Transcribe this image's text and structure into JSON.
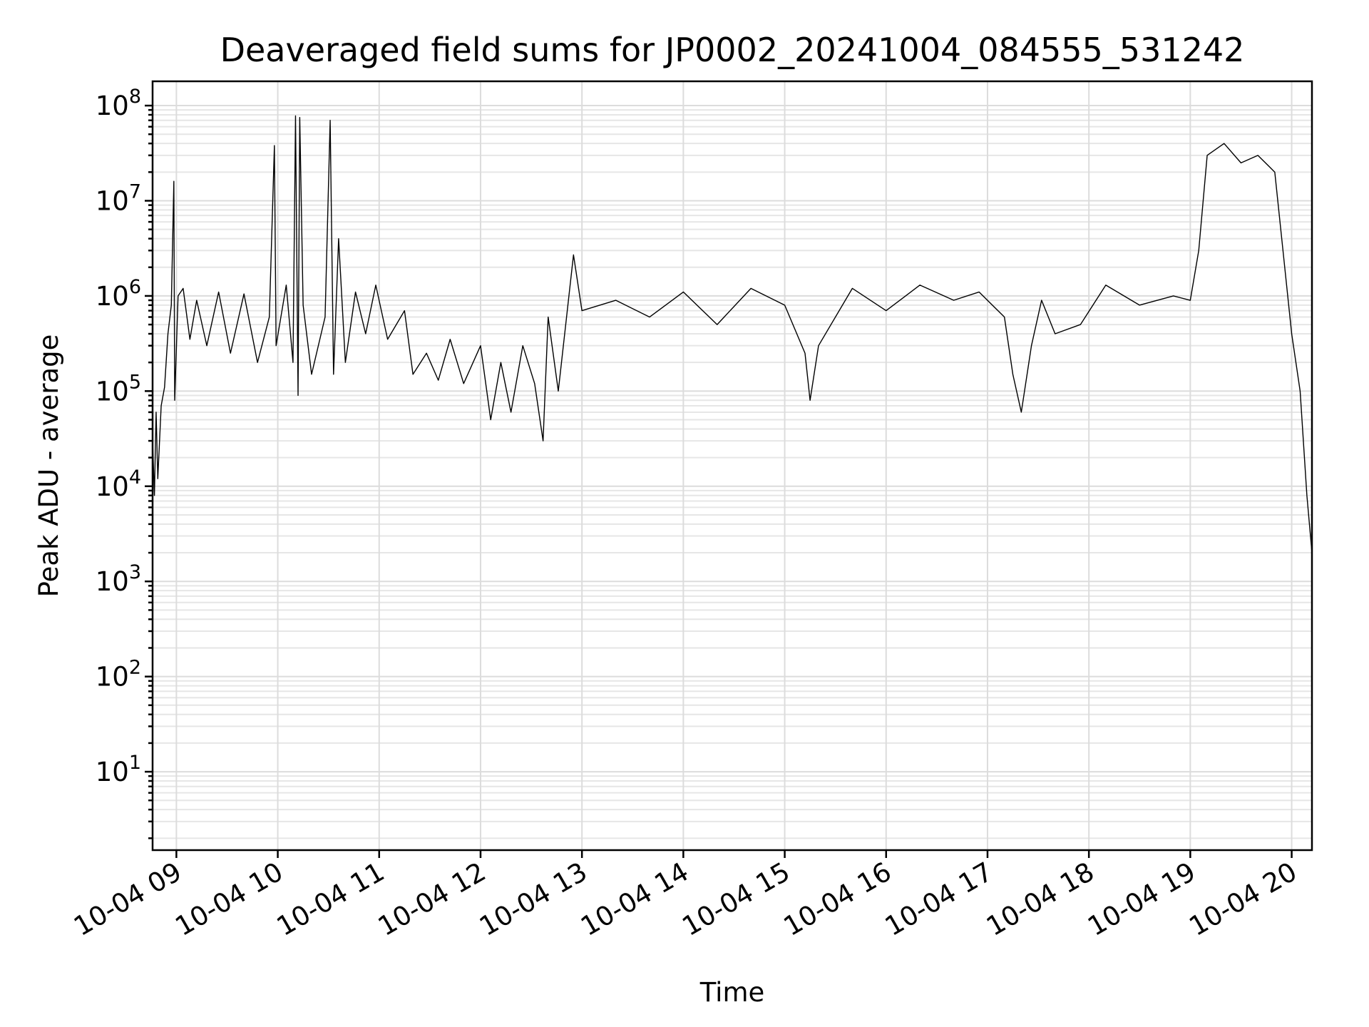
{
  "chart_data": {
    "type": "line",
    "title": "Deaveraged field sums for JP0002_20241004_084555_531242",
    "xlabel": "Time",
    "ylabel": "Peak ADU - average",
    "yscale": "log",
    "ylim": [
      1.5,
      180000000
    ],
    "xlim": [
      "2024-10-04 08:45:55",
      "2024-10-04 20:12:00"
    ],
    "grid": true,
    "x_ticks": [
      {
        "value": "2024-10-04 09:00",
        "label": "10-04 09"
      },
      {
        "value": "2024-10-04 10:00",
        "label": "10-04 10"
      },
      {
        "value": "2024-10-04 11:00",
        "label": "10-04 11"
      },
      {
        "value": "2024-10-04 12:00",
        "label": "10-04 12"
      },
      {
        "value": "2024-10-04 13:00",
        "label": "10-04 13"
      },
      {
        "value": "2024-10-04 14:00",
        "label": "10-04 14"
      },
      {
        "value": "2024-10-04 15:00",
        "label": "10-04 15"
      },
      {
        "value": "2024-10-04 16:00",
        "label": "10-04 16"
      },
      {
        "value": "2024-10-04 17:00",
        "label": "10-04 17"
      },
      {
        "value": "2024-10-04 18:00",
        "label": "10-04 18"
      },
      {
        "value": "2024-10-04 19:00",
        "label": "10-04 19"
      },
      {
        "value": "2024-10-04 20:00",
        "label": "10-04 20"
      }
    ],
    "y_ticks": [
      {
        "value": 10,
        "base": "10",
        "exp": "1"
      },
      {
        "value": 100,
        "base": "10",
        "exp": "2"
      },
      {
        "value": 1000,
        "base": "10",
        "exp": "3"
      },
      {
        "value": 10000,
        "base": "10",
        "exp": "4"
      },
      {
        "value": 100000,
        "base": "10",
        "exp": "5"
      },
      {
        "value": 1000000,
        "base": "10",
        "exp": "6"
      },
      {
        "value": 10000000,
        "base": "10",
        "exp": "7"
      },
      {
        "value": 100000000,
        "base": "10",
        "exp": "8"
      }
    ],
    "series": [
      {
        "color": "#000000",
        "points": [
          [
            "2024-10-04 08:45:55",
            30000
          ],
          [
            "2024-10-04 08:47:00",
            8000
          ],
          [
            "2024-10-04 08:48:00",
            60000
          ],
          [
            "2024-10-04 08:49:00",
            12000
          ],
          [
            "2024-10-04 08:51:00",
            70000
          ],
          [
            "2024-10-04 08:53:00",
            110000
          ],
          [
            "2024-10-04 08:55:00",
            400000
          ],
          [
            "2024-10-04 08:57:00",
            800000
          ],
          [
            "2024-10-04 08:58:30",
            16000000
          ],
          [
            "2024-10-04 08:59:00",
            80000
          ],
          [
            "2024-10-04 09:01:00",
            1000000
          ],
          [
            "2024-10-04 09:04:00",
            1200000
          ],
          [
            "2024-10-04 09:08:00",
            350000
          ],
          [
            "2024-10-04 09:12:00",
            900000
          ],
          [
            "2024-10-04 09:18:00",
            300000
          ],
          [
            "2024-10-04 09:25:00",
            1100000
          ],
          [
            "2024-10-04 09:32:00",
            250000
          ],
          [
            "2024-10-04 09:40:00",
            1050000
          ],
          [
            "2024-10-04 09:48:00",
            200000
          ],
          [
            "2024-10-04 09:55:00",
            600000
          ],
          [
            "2024-10-04 09:58:00",
            38000000
          ],
          [
            "2024-10-04 09:59:00",
            300000
          ],
          [
            "2024-10-04 10:05:00",
            1300000
          ],
          [
            "2024-10-04 10:09:00",
            200000
          ],
          [
            "2024-10-04 10:10:30",
            78000000
          ],
          [
            "2024-10-04 10:12:00",
            90000
          ],
          [
            "2024-10-04 10:13:00",
            75000000
          ],
          [
            "2024-10-04 10:15:00",
            800000
          ],
          [
            "2024-10-04 10:20:00",
            150000
          ],
          [
            "2024-10-04 10:28:00",
            600000
          ],
          [
            "2024-10-04 10:31:00",
            70000000
          ],
          [
            "2024-10-04 10:33:00",
            150000
          ],
          [
            "2024-10-04 10:36:00",
            4000000
          ],
          [
            "2024-10-04 10:40:00",
            200000
          ],
          [
            "2024-10-04 10:46:00",
            1100000
          ],
          [
            "2024-10-04 10:52:00",
            400000
          ],
          [
            "2024-10-04 10:58:00",
            1300000
          ],
          [
            "2024-10-04 11:05:00",
            350000
          ],
          [
            "2024-10-04 11:15:00",
            700000
          ],
          [
            "2024-10-04 11:20:00",
            150000
          ],
          [
            "2024-10-04 11:28:00",
            250000
          ],
          [
            "2024-10-04 11:35:00",
            130000
          ],
          [
            "2024-10-04 11:42:00",
            350000
          ],
          [
            "2024-10-04 11:50:00",
            120000
          ],
          [
            "2024-10-04 12:00:00",
            300000
          ],
          [
            "2024-10-04 12:06:00",
            50000
          ],
          [
            "2024-10-04 12:12:00",
            200000
          ],
          [
            "2024-10-04 12:18:00",
            60000
          ],
          [
            "2024-10-04 12:25:00",
            300000
          ],
          [
            "2024-10-04 12:32:00",
            120000
          ],
          [
            "2024-10-04 12:37:00",
            30000
          ],
          [
            "2024-10-04 12:40:00",
            600000
          ],
          [
            "2024-10-04 12:46:00",
            100000
          ],
          [
            "2024-10-04 12:52:00",
            900000
          ],
          [
            "2024-10-04 12:55:00",
            2700000
          ],
          [
            "2024-10-04 13:00:00",
            700000
          ],
          [
            "2024-10-04 13:20:00",
            900000
          ],
          [
            "2024-10-04 13:40:00",
            600000
          ],
          [
            "2024-10-04 14:00:00",
            1100000
          ],
          [
            "2024-10-04 14:20:00",
            500000
          ],
          [
            "2024-10-04 14:40:00",
            1200000
          ],
          [
            "2024-10-04 15:00:00",
            800000
          ],
          [
            "2024-10-04 15:12:00",
            250000
          ],
          [
            "2024-10-04 15:15:00",
            80000
          ],
          [
            "2024-10-04 15:20:00",
            300000
          ],
          [
            "2024-10-04 15:40:00",
            1200000
          ],
          [
            "2024-10-04 16:00:00",
            700000
          ],
          [
            "2024-10-04 16:20:00",
            1300000
          ],
          [
            "2024-10-04 16:40:00",
            900000
          ],
          [
            "2024-10-04 16:55:00",
            1100000
          ],
          [
            "2024-10-04 17:10:00",
            600000
          ],
          [
            "2024-10-04 17:15:00",
            150000
          ],
          [
            "2024-10-04 17:20:00",
            60000
          ],
          [
            "2024-10-04 17:26:00",
            300000
          ],
          [
            "2024-10-04 17:32:00",
            900000
          ],
          [
            "2024-10-04 17:40:00",
            400000
          ],
          [
            "2024-10-04 17:55:00",
            500000
          ],
          [
            "2024-10-04 18:10:00",
            1300000
          ],
          [
            "2024-10-04 18:30:00",
            800000
          ],
          [
            "2024-10-04 18:50:00",
            1000000
          ],
          [
            "2024-10-04 19:00:00",
            900000
          ],
          [
            "2024-10-04 19:05:00",
            3000000
          ],
          [
            "2024-10-04 19:10:00",
            30000000
          ],
          [
            "2024-10-04 19:20:00",
            40000000
          ],
          [
            "2024-10-04 19:30:00",
            25000000
          ],
          [
            "2024-10-04 19:40:00",
            30000000
          ],
          [
            "2024-10-04 19:50:00",
            20000000
          ],
          [
            "2024-10-04 20:00:00",
            400000
          ],
          [
            "2024-10-04 20:05:00",
            100000
          ],
          [
            "2024-10-04 20:09:00",
            8000
          ],
          [
            "2024-10-04 20:12:00",
            2000
          ]
        ]
      }
    ]
  }
}
